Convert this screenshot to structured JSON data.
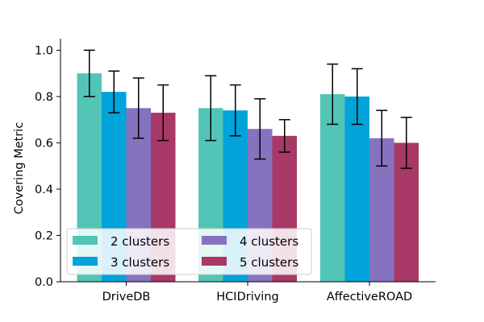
{
  "chart_data": {
    "type": "bar",
    "title": "",
    "xlabel": "",
    "ylabel": "Covering Metric",
    "ylim": [
      0,
      1.05
    ],
    "yticks": [
      "0.0",
      "0.2",
      "0.4",
      "0.6",
      "0.8",
      "1.0"
    ],
    "categories": [
      "DriveDB",
      "HCIDriving",
      "AffectiveROAD"
    ],
    "series": [
      {
        "name": "2 clusters",
        "color": "#52c5b7",
        "values": [
          0.9,
          0.75,
          0.81
        ],
        "errors": [
          0.1,
          0.14,
          0.13
        ]
      },
      {
        "name": "3 clusters",
        "color": "#00a3da",
        "values": [
          0.82,
          0.74,
          0.8
        ],
        "errors": [
          0.09,
          0.11,
          0.12
        ]
      },
      {
        "name": "4 clusters",
        "color": "#8673c0",
        "values": [
          0.75,
          0.66,
          0.62
        ],
        "errors": [
          0.13,
          0.13,
          0.12
        ]
      },
      {
        "name": "5 clusters",
        "color": "#a83865",
        "values": [
          0.73,
          0.63,
          0.6
        ],
        "errors": [
          0.12,
          0.07,
          0.11
        ]
      }
    ],
    "legend": {
      "position": "lower-left",
      "columns": 2
    },
    "grid": false
  }
}
